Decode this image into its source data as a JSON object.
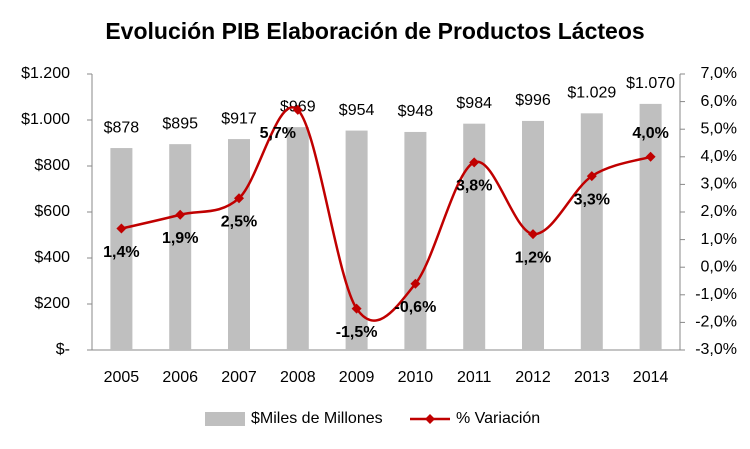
{
  "chart_data": {
    "type": "bar-line",
    "title": "Evolución PIB Elaboración de Productos Lácteos",
    "categories": [
      "2005",
      "2006",
      "2007",
      "2008",
      "2009",
      "2010",
      "2011",
      "2012",
      "2013",
      "2014"
    ],
    "series": [
      {
        "name": "$Miles de Millones",
        "type": "bar",
        "color": "#bfbfbf",
        "values": [
          878,
          895,
          917,
          969,
          954,
          948,
          984,
          996,
          1029,
          1070
        ],
        "value_labels": [
          "$878",
          "$895",
          "$917",
          "$969",
          "$954",
          "$948",
          "$984",
          "$996",
          "$1.029",
          "$1.070"
        ]
      },
      {
        "name": "% Variación",
        "type": "line",
        "axis": "y2",
        "color": "#c00000",
        "values": [
          1.4,
          1.9,
          2.5,
          5.7,
          -1.5,
          -0.6,
          3.8,
          1.2,
          3.3,
          4.0
        ],
        "value_labels": [
          "1,4%",
          "1,9%",
          "2,5%",
          "5,7%",
          "-1,5%",
          "-0,6%",
          "3,8%",
          "1,2%",
          "3,3%",
          "4,0%"
        ]
      }
    ],
    "ylim": [
      0,
      1200
    ],
    "yticks": [
      {
        "value": 0,
        "label": "$-"
      },
      {
        "value": 200,
        "label": "$200"
      },
      {
        "value": 400,
        "label": "$400"
      },
      {
        "value": 600,
        "label": "$600"
      },
      {
        "value": 800,
        "label": "$800"
      },
      {
        "value": 1000,
        "label": "$1.000"
      },
      {
        "value": 1200,
        "label": "$1.200"
      }
    ],
    "y2lim": [
      -3,
      7
    ],
    "y2ticks": [
      {
        "value": -3,
        "label": "-3,0%"
      },
      {
        "value": -2,
        "label": "-2,0%"
      },
      {
        "value": -1,
        "label": "-1,0%"
      },
      {
        "value": 0,
        "label": "0,0%"
      },
      {
        "value": 1,
        "label": "1,0%"
      },
      {
        "value": 2,
        "label": "2,0%"
      },
      {
        "value": 3,
        "label": "3,0%"
      },
      {
        "value": 4,
        "label": "4,0%"
      },
      {
        "value": 5,
        "label": "5,0%"
      },
      {
        "value": 6,
        "label": "6,0%"
      },
      {
        "value": 7,
        "label": "7,0%"
      }
    ],
    "legend": "bottom"
  }
}
